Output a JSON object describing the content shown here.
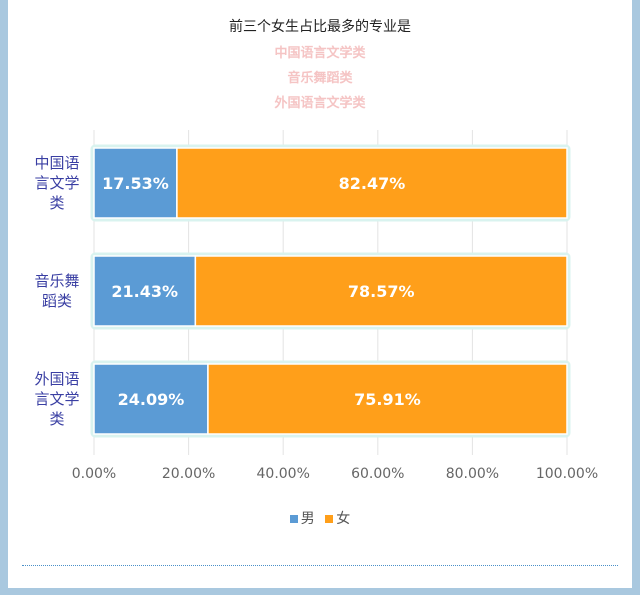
{
  "header": {
    "title": "前三个女生占比最多的专业是",
    "highlights": [
      "中国语言文学类",
      "音乐舞蹈类",
      "外国语言文学类"
    ]
  },
  "colors": {
    "male": "#5b9bd5",
    "female": "#ff9f1a",
    "highlight": "#f5c4c4",
    "category_label": "#3a3fa3"
  },
  "chart_data": {
    "type": "bar",
    "orientation": "horizontal",
    "stacked": true,
    "categories": [
      "中国语言文学类",
      "音乐舞蹈类",
      "外国语言文学类"
    ],
    "category_lines": [
      [
        "中国语",
        "言文学",
        "类"
      ],
      [
        "音乐舞",
        "蹈类"
      ],
      [
        "外国语",
        "言文学",
        "类"
      ]
    ],
    "series": [
      {
        "name": "男",
        "values": [
          17.53,
          21.43,
          24.09
        ],
        "labels": [
          "17.53%",
          "21.43%",
          "24.09%"
        ]
      },
      {
        "name": "女",
        "values": [
          82.47,
          78.57,
          75.91
        ],
        "labels": [
          "82.47%",
          "78.57%",
          "75.91%"
        ]
      }
    ],
    "x_ticks": [
      "0.00%",
      "20.00%",
      "40.00%",
      "60.00%",
      "80.00%",
      "100.00%"
    ],
    "xlim": [
      0,
      100
    ],
    "grid": true,
    "legend": "bottom"
  }
}
